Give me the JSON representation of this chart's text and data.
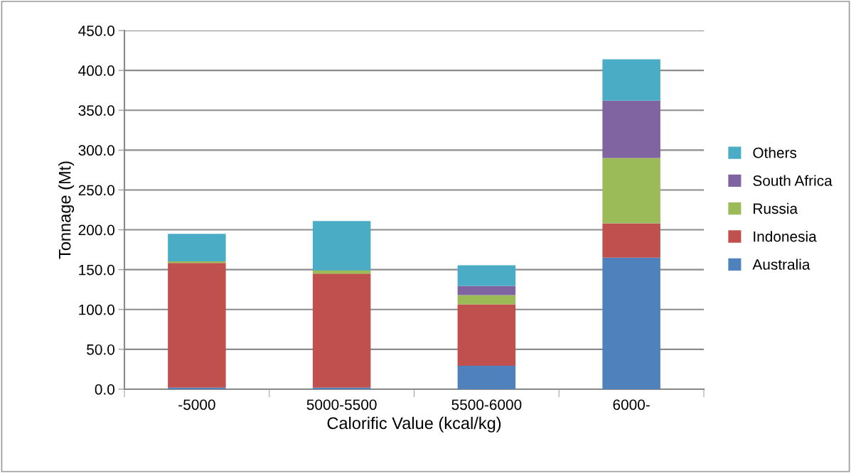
{
  "chart_data": {
    "type": "bar",
    "stacked": true,
    "xlabel": "Calorific Value (kcal/kg)",
    "ylabel": "Tonnage (Mt)",
    "categories": [
      "-5000",
      "5000-5500",
      "5500-6000",
      "6000-"
    ],
    "series": [
      {
        "name": "Australia",
        "color": "#4f81bd",
        "values": [
          2,
          2,
          29.5,
          165
        ]
      },
      {
        "name": "Indonesia",
        "color": "#c0504d",
        "values": [
          156.5,
          143,
          77,
          43
        ]
      },
      {
        "name": "Russia",
        "color": "#9bbb59",
        "values": [
          2,
          4,
          11.5,
          82
        ]
      },
      {
        "name": "South Africa",
        "color": "#8064a2",
        "values": [
          0,
          0,
          11.5,
          72
        ]
      },
      {
        "name": "Others",
        "color": "#4bacc6",
        "values": [
          34.5,
          62,
          26,
          52
        ]
      }
    ],
    "ylim": [
      0,
      450
    ],
    "yticks": [
      {
        "value": 0,
        "label": "0.0"
      },
      {
        "value": 50,
        "label": "50.0"
      },
      {
        "value": 100,
        "label": "100.0"
      },
      {
        "value": 150,
        "label": "150.0"
      },
      {
        "value": 200,
        "label": "200.0"
      },
      {
        "value": 250,
        "label": "250.0"
      },
      {
        "value": 300,
        "label": "300.0"
      },
      {
        "value": 350,
        "label": "350.0"
      },
      {
        "value": 400,
        "label": "400.0"
      },
      {
        "value": 450,
        "label": "450.0"
      }
    ],
    "grid": "y",
    "legend": "right"
  }
}
